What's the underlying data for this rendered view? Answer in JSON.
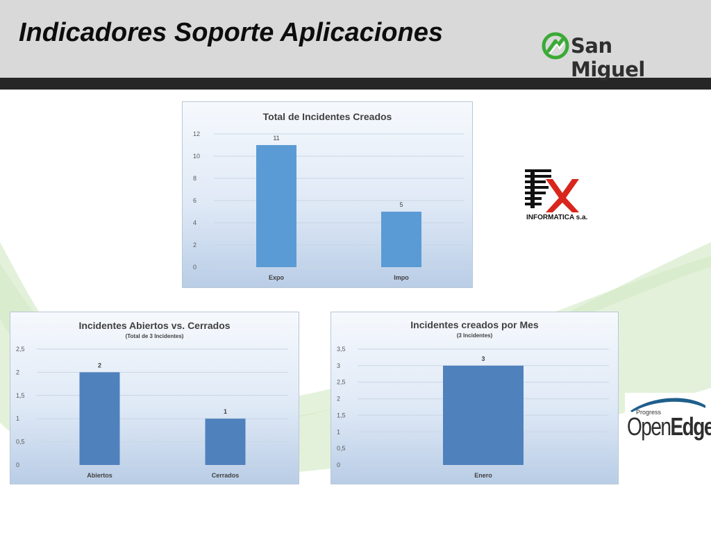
{
  "page": {
    "title": "Indicadores Soporte Aplicaciones"
  },
  "logos": {
    "san_miguel": "San Miguel",
    "fx_informatica": "INFORMATICA s.a.",
    "openedge_small": "Progress",
    "openedge_open": "Open",
    "openedge_edge": "Edge"
  },
  "colors": {
    "bar_light": "#5b9bd5",
    "bar_dark": "#4f81bd",
    "san_miguel_green": "#3aaa35",
    "fx_red": "#d9261c"
  },
  "chart_data": [
    {
      "type": "bar",
      "title": "Total de Incidentes Creados",
      "subtitle": "",
      "categories": [
        "Expo",
        "Impo"
      ],
      "values": [
        11,
        5
      ],
      "value_labels": [
        "11",
        "5"
      ],
      "ylim": [
        0,
        12
      ],
      "yticks": [
        "0",
        "2",
        "4",
        "6",
        "8",
        "10",
        "12"
      ],
      "grid": true,
      "legend": "none"
    },
    {
      "type": "bar",
      "title": "Incidentes Abiertos vs. Cerrados",
      "subtitle": "(Total de 3 Incidentes)",
      "categories": [
        "Abiertos",
        "Cerrados"
      ],
      "values": [
        2,
        1
      ],
      "value_labels": [
        "2",
        "1"
      ],
      "ylim": [
        0,
        2.5
      ],
      "yticks": [
        "0",
        "0,5",
        "1",
        "1,5",
        "2",
        "2,5"
      ],
      "grid": true,
      "legend": "none"
    },
    {
      "type": "bar",
      "title": "Incidentes creados por Mes",
      "subtitle": "(3 Incidentes)",
      "categories": [
        "Enero"
      ],
      "values": [
        3
      ],
      "value_labels": [
        "3"
      ],
      "ylim": [
        0,
        3.5
      ],
      "yticks": [
        "0",
        "0,5",
        "1",
        "1,5",
        "2",
        "2,5",
        "3",
        "3,5"
      ],
      "grid": true,
      "legend": "none"
    }
  ]
}
